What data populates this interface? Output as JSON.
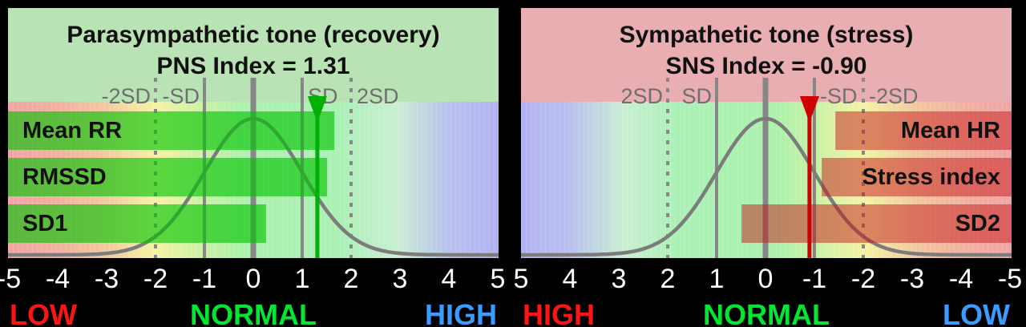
{
  "page": {
    "background": "#000000",
    "axis_tick_color": "#ffffff",
    "gradient_stops": [
      [
        "0%",
        "#f2a4a4"
      ],
      [
        "9%",
        "#f3af9f"
      ],
      [
        "19%",
        "#f2c69e"
      ],
      [
        "30%",
        "#f5f3a3"
      ],
      [
        "40%",
        "#c9f1a4"
      ],
      [
        "48%",
        "#abf2ac"
      ],
      [
        "68%",
        "#aaf1b5"
      ],
      [
        "79%",
        "#c9efd2"
      ],
      [
        "90%",
        "#b9c0ef"
      ],
      [
        "100%",
        "#b2b2f4"
      ]
    ]
  },
  "chart_data": [
    {
      "type": "bar",
      "orientation": "horizontal",
      "title": "Parasympathetic tone (recovery)",
      "subtitle": "PNS Index = 1.31",
      "index_name": "PNS Index",
      "index_value": 1.31,
      "xlim": [
        -5,
        5
      ],
      "axis_reversed": false,
      "x_ticks": [
        -5,
        -4,
        -3,
        -2,
        -1,
        0,
        1,
        2,
        3,
        4,
        5
      ],
      "gridlines": {
        "center": 0,
        "solid_sd": [
          -1,
          1
        ],
        "dotted_sd": [
          -2,
          2
        ]
      },
      "sd_labels": [
        {
          "text": "-2SD",
          "sd": -2,
          "anchor": "before"
        },
        {
          "text": "-SD",
          "sd": -1,
          "anchor": "before"
        },
        {
          "text": "SD",
          "sd": 1,
          "anchor": "after"
        },
        {
          "text": "2SD",
          "sd": 2,
          "anchor": "after"
        }
      ],
      "curve": "normal-distribution",
      "bars": [
        {
          "label": "Mean RR",
          "value": 1.66
        },
        {
          "label": "RMSSD",
          "value": 1.51
        },
        {
          "label": "SD1",
          "value": 0.26
        }
      ],
      "bar_label_side": "left",
      "marker_value": 1.31,
      "zones": [
        {
          "text": "LOW",
          "color": "#ff1414",
          "align": "left"
        },
        {
          "text": "NORMAL",
          "color": "#00e632",
          "align": "center"
        },
        {
          "text": "HIGH",
          "color": "#3b9cff",
          "align": "right"
        }
      ],
      "gradient_direction": "to right",
      "colors": {
        "header_bg": "#b9e3b4",
        "title": "#101010",
        "bar_fill": "rgba(0,195,0,0.62)",
        "marker": "#00b007",
        "curve": "#7c7c7c",
        "gridline": "#878787",
        "sd_label": "#6f6f6f"
      }
    },
    {
      "type": "bar",
      "orientation": "horizontal",
      "title": "Sympathetic tone (stress)",
      "subtitle": "SNS Index = -0.90",
      "index_name": "SNS Index",
      "index_value": -0.9,
      "xlim": [
        5,
        -5
      ],
      "axis_reversed": true,
      "x_ticks": [
        5,
        4,
        3,
        2,
        1,
        0,
        -1,
        -2,
        -3,
        -4,
        -5
      ],
      "gridlines": {
        "center": 0,
        "solid_sd": [
          1,
          -1
        ],
        "dotted_sd": [
          2,
          -2
        ]
      },
      "sd_labels": [
        {
          "text": "2SD",
          "sd": 2,
          "anchor": "before"
        },
        {
          "text": "SD",
          "sd": 1,
          "anchor": "before"
        },
        {
          "text": "-SD",
          "sd": -1,
          "anchor": "after"
        },
        {
          "text": "-2SD",
          "sd": -2,
          "anchor": "after"
        }
      ],
      "curve": "normal-distribution",
      "bars": [
        {
          "label": "Mean HR",
          "value": -1.43
        },
        {
          "label": "Stress index",
          "value": -1.15
        },
        {
          "label": "SD2",
          "value": 0.49
        }
      ],
      "bar_label_side": "right",
      "marker_value": -0.9,
      "zones": [
        {
          "text": "HIGH",
          "color": "#ff1414",
          "align": "left"
        },
        {
          "text": "NORMAL",
          "color": "#00e632",
          "align": "center"
        },
        {
          "text": "LOW",
          "color": "#3b9cff",
          "align": "right"
        }
      ],
      "gradient_direction": "to left",
      "colors": {
        "header_bg": "#e8aeb2",
        "title": "#101010",
        "bar_fill": "rgba(195,25,25,0.5)",
        "marker": "#cf0000",
        "curve": "#7c7c7c",
        "gridline": "#878787",
        "sd_label": "#6f6f6f"
      }
    }
  ]
}
